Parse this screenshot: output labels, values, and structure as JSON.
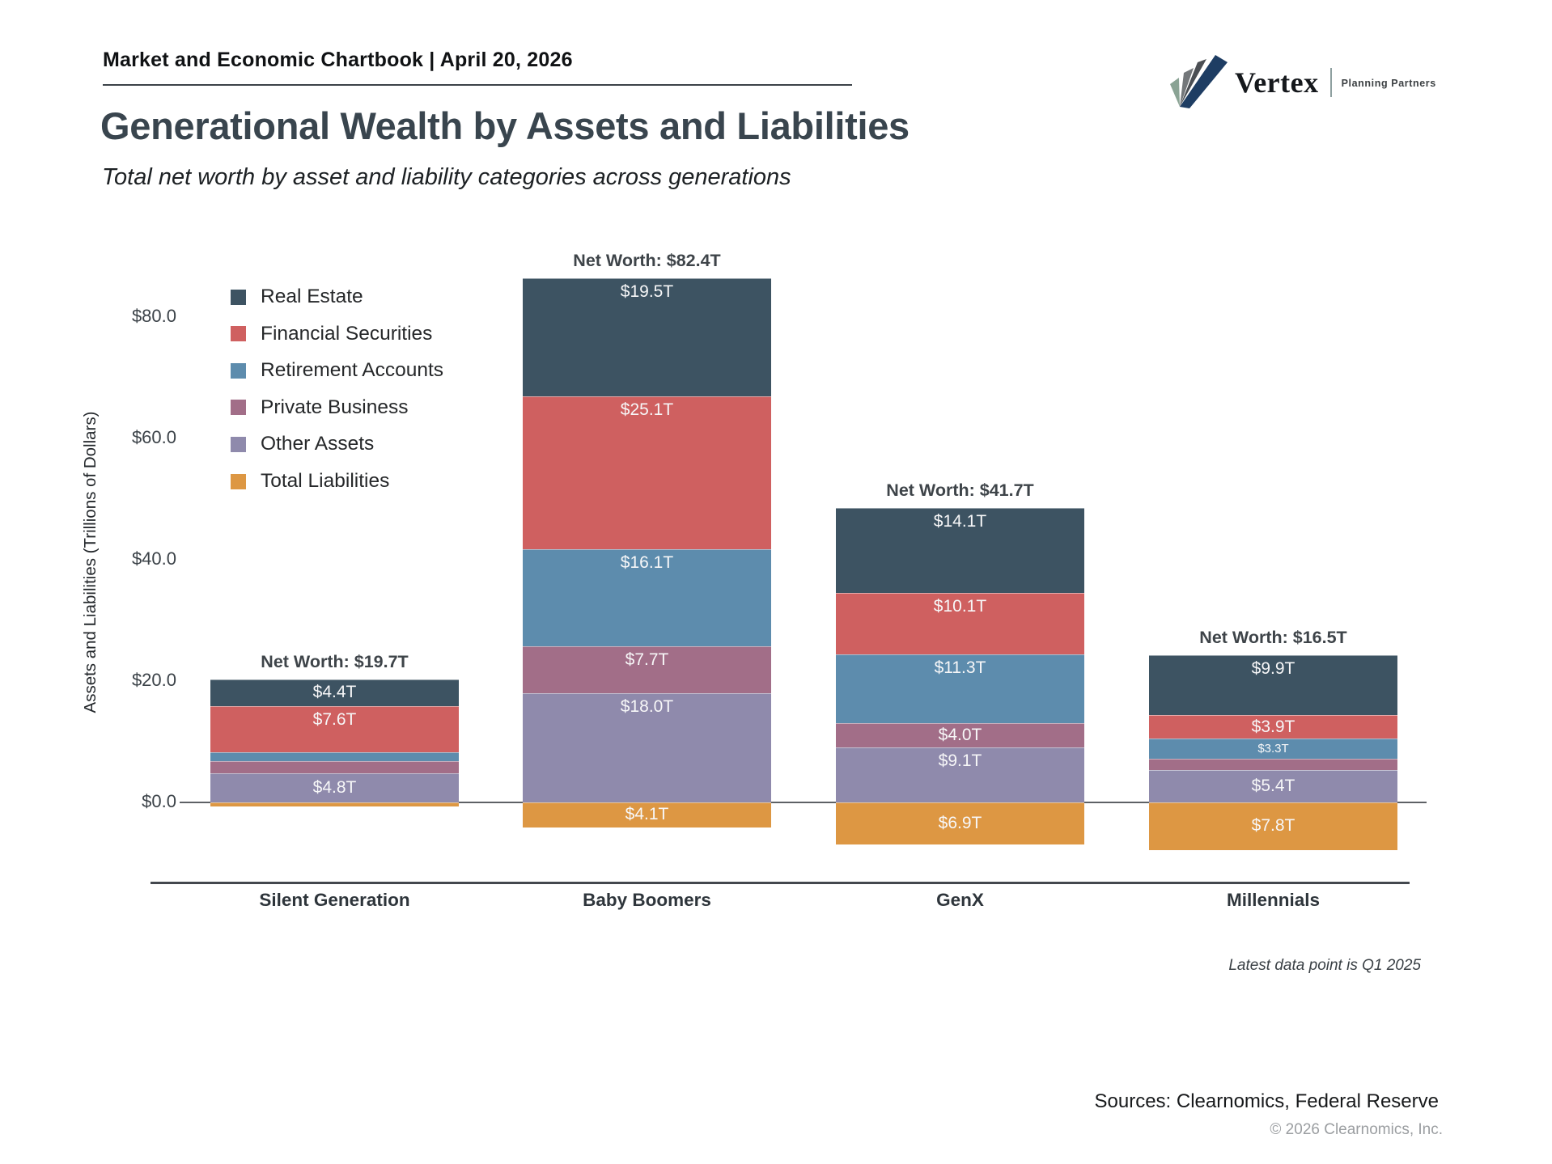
{
  "header": {
    "chartbook_title": "Market and Economic Chartbook | April 20, 2026",
    "logo": {
      "brand": "Vertex",
      "tagline": "Planning Partners"
    }
  },
  "title": "Generational Wealth by Assets and Liabilities",
  "subtitle": "Total net worth by asset and liability categories across generations",
  "footnote": "Latest data point is Q1 2025",
  "sources": "Sources: Clearnomics, Federal Reserve",
  "copyright": "© 2026 Clearnomics, Inc.",
  "chart_data": {
    "type": "bar",
    "stacked": true,
    "ylabel": "Assets and Liabilities (Trillions of Dollars)",
    "yticks": [
      {
        "label": "$0.0",
        "value": 0
      },
      {
        "label": "$20.0",
        "value": 20
      },
      {
        "label": "$40.0",
        "value": 40
      },
      {
        "label": "$60.0",
        "value": 60
      },
      {
        "label": "$80.0",
        "value": 80
      }
    ],
    "ylim": [
      -8,
      88
    ],
    "grid": false,
    "legend_position": "upper-left-inside",
    "categories": [
      "Silent Generation",
      "Baby Boomers",
      "GenX",
      "Millennials"
    ],
    "series": [
      {
        "name": "Real Estate",
        "color": "#3d5362",
        "values": [
          4.4,
          19.5,
          14.1,
          9.9
        ],
        "labels": [
          "$4.4T",
          "$19.5T",
          "$14.1T",
          "$9.9T"
        ]
      },
      {
        "name": "Financial Securities",
        "color": "#cf6060",
        "values": [
          7.6,
          25.1,
          10.1,
          3.9
        ],
        "labels": [
          "$7.6T",
          "$25.1T",
          "$10.1T",
          "$3.9T"
        ]
      },
      {
        "name": "Retirement Accounts",
        "color": "#5d8cad",
        "values": [
          1.5,
          16.1,
          11.3,
          3.3
        ],
        "labels": [
          "",
          "$16.1T",
          "$11.3T",
          "$3.3T"
        ]
      },
      {
        "name": "Private Business",
        "color": "#a26e88",
        "values": [
          2.0,
          7.7,
          4.0,
          1.8
        ],
        "labels": [
          "",
          "$7.7T",
          "$4.0T",
          ""
        ]
      },
      {
        "name": "Other Assets",
        "color": "#8f8aac",
        "values": [
          4.8,
          18.0,
          9.1,
          5.4
        ],
        "labels": [
          "$4.8T",
          "$18.0T",
          "$9.1T",
          "$5.4T"
        ]
      },
      {
        "name": "Total Liabilities",
        "color": "#dd9743",
        "values": [
          0.6,
          4.1,
          6.9,
          7.8
        ],
        "labels": [
          "",
          "$4.1T",
          "$6.9T",
          "$7.8T"
        ],
        "liability": true
      }
    ],
    "net_worth_labels": [
      "Net Worth: $19.7T",
      "Net Worth: $82.4T",
      "Net Worth: $41.7T",
      "Net Worth: $16.5T"
    ]
  }
}
